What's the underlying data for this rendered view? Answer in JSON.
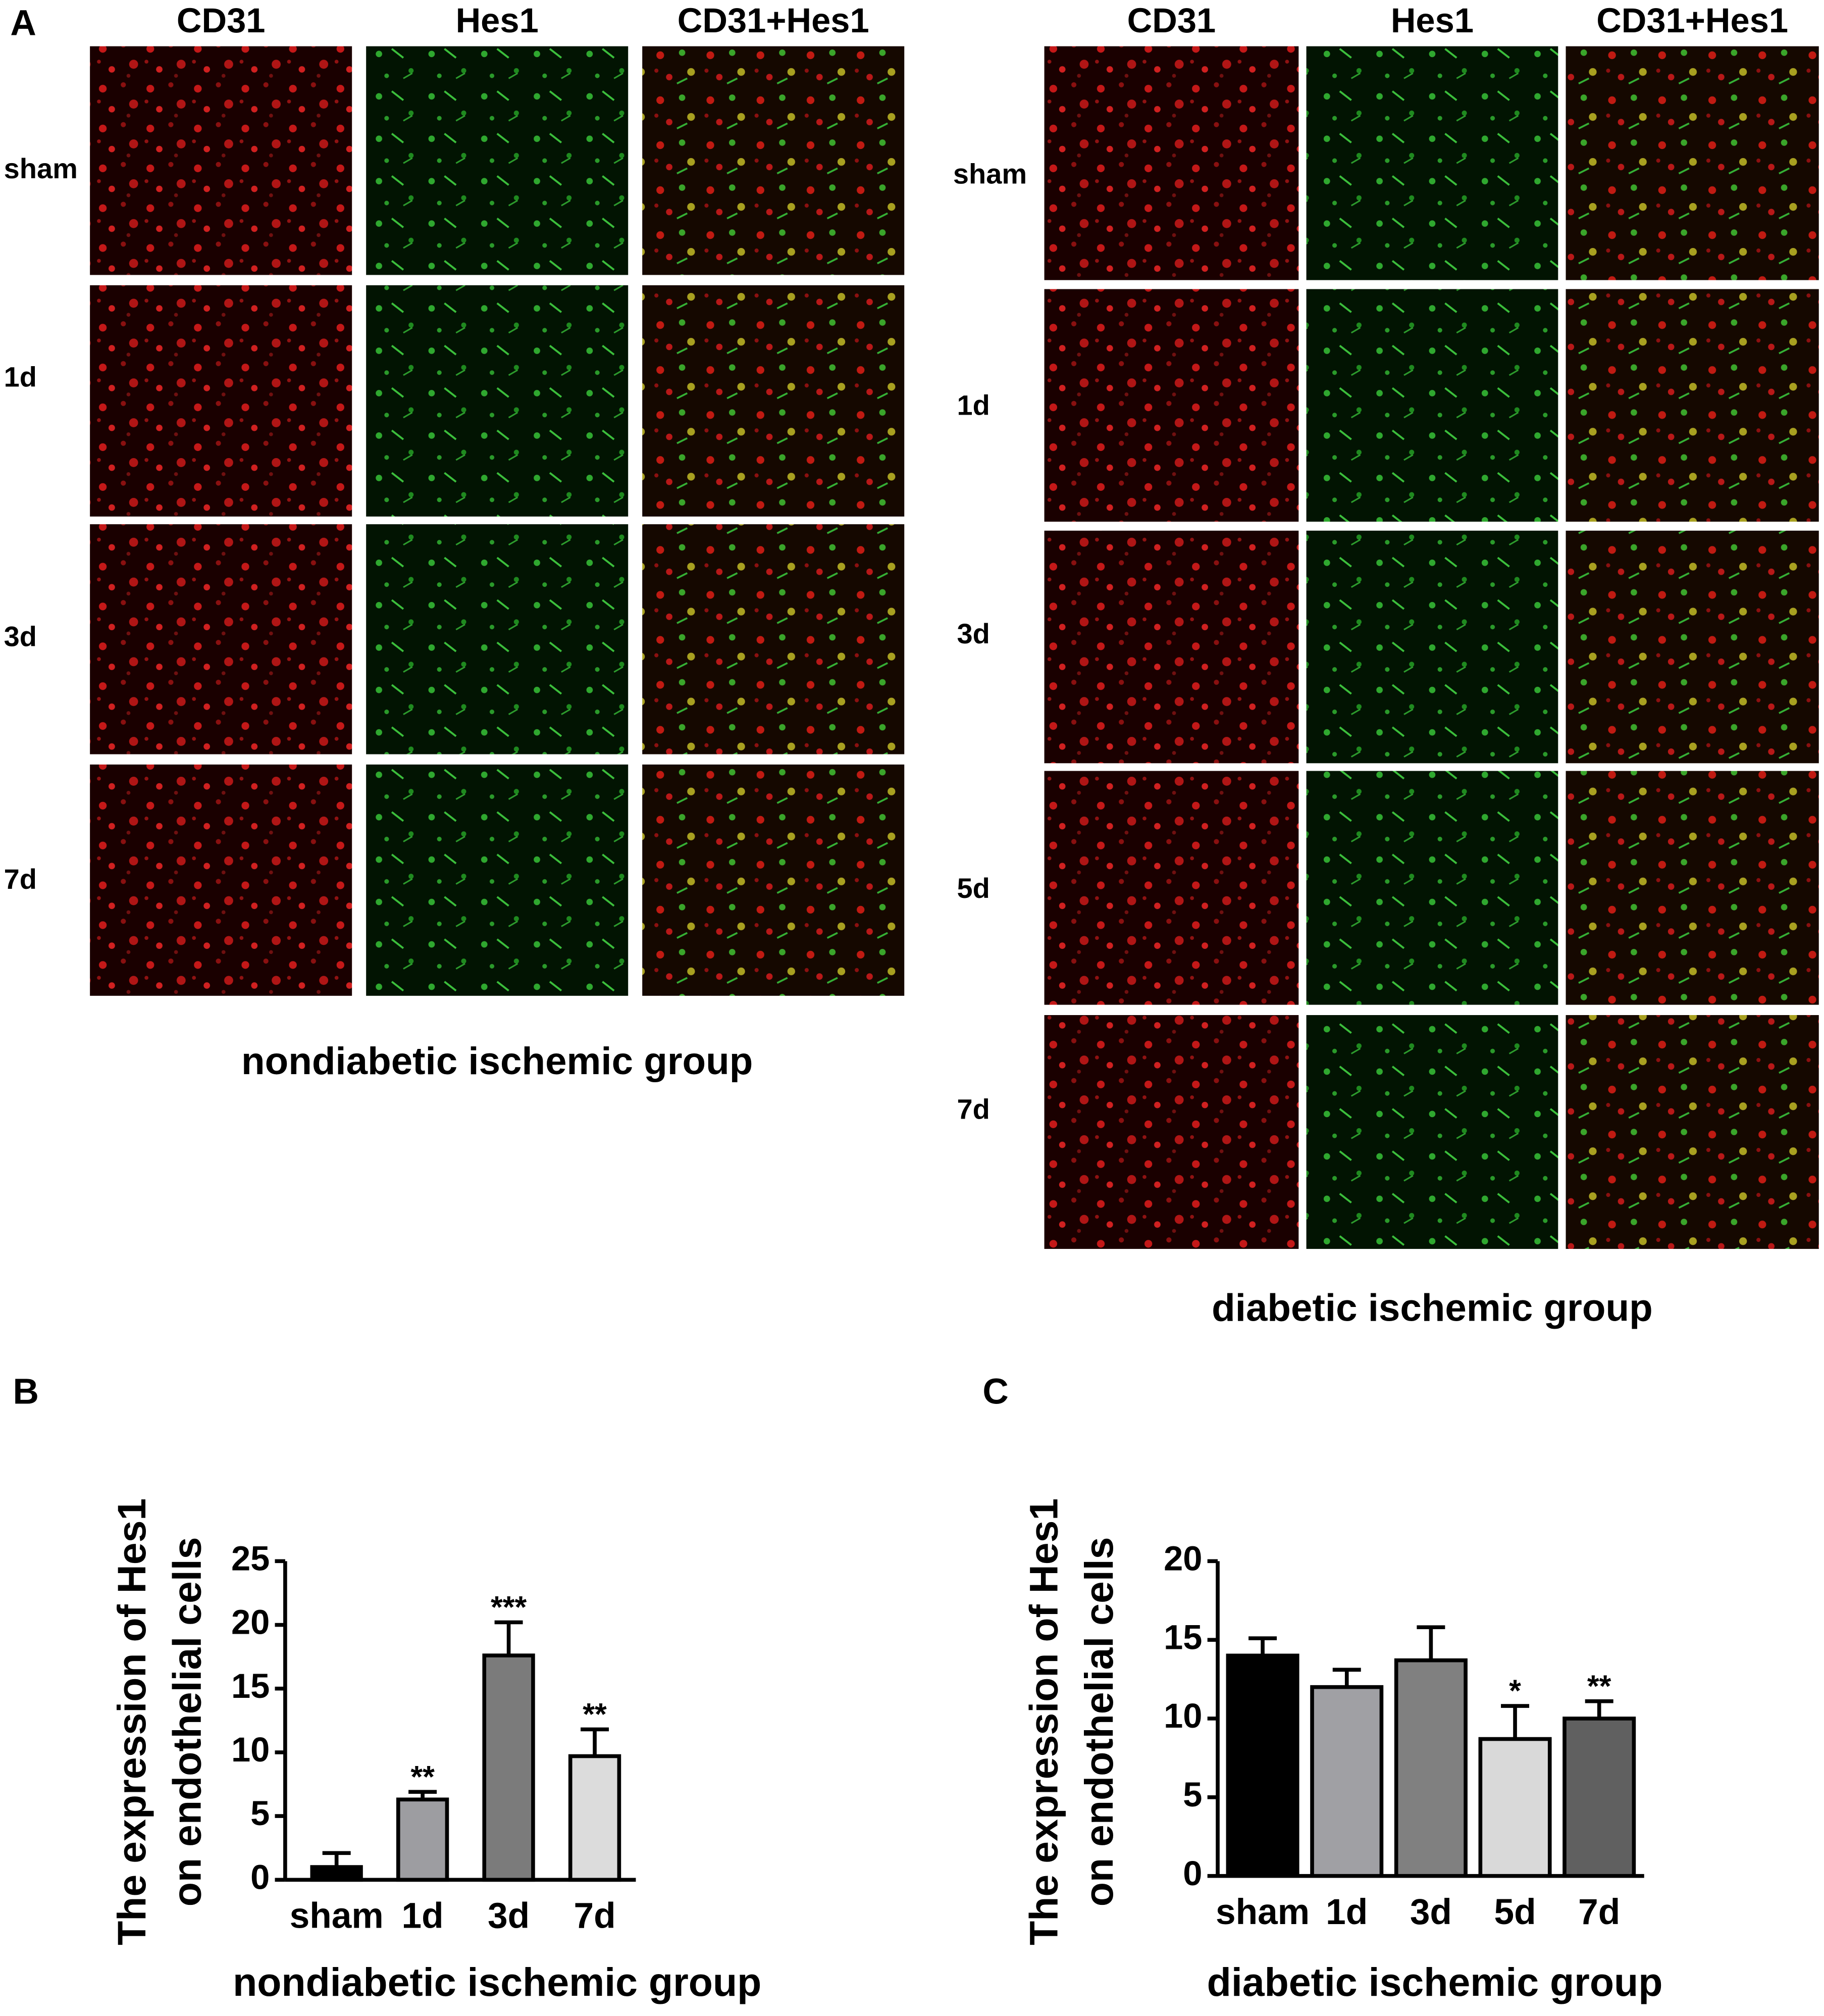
{
  "panel_a": {
    "label": "A",
    "groups": [
      {
        "columns": [
          "CD31",
          "Hes1",
          "CD31+Hes1"
        ],
        "rows": [
          "sham",
          "1d",
          "3d",
          "7d"
        ],
        "caption": "nondiabetic ischemic group"
      },
      {
        "columns": [
          "CD31",
          "Hes1",
          "CD31+Hes1"
        ],
        "rows": [
          "sham",
          "1d",
          "3d",
          "5d",
          "7d"
        ],
        "caption": "diabetic ischemic group"
      }
    ]
  },
  "chart_data": [
    {
      "type": "bar",
      "panel_label": "B",
      "y_label": [
        "The expression of Hes1",
        "on endothelial cells"
      ],
      "x_label": "nondiabetic ischemic group",
      "categories": [
        "sham",
        "1d",
        "3d",
        "7d"
      ],
      "values": [
        1,
        6.3,
        17.6,
        9.7
      ],
      "errors": [
        1.1,
        0.6,
        2.6,
        2.1
      ],
      "colors": [
        "#000000",
        "#9d9da1",
        "#7b7b7b",
        "#dcdcdc"
      ],
      "annotations": [
        null,
        "**",
        "***",
        "**"
      ],
      "ylim": [
        0,
        25
      ],
      "yticks": [
        0,
        5,
        10,
        15,
        20,
        25
      ]
    },
    {
      "type": "bar",
      "panel_label": "C",
      "y_label": [
        "The expression of Hes1",
        "on endothelial cells"
      ],
      "x_label": "diabetic ischemic group",
      "categories": [
        "sham",
        "1d",
        "3d",
        "5d",
        "7d"
      ],
      "values": [
        14,
        12,
        13.7,
        8.7,
        10
      ],
      "errors": [
        1.1,
        1.1,
        2.1,
        2.1,
        1.1
      ],
      "colors": [
        "#000000",
        "#a0a0a4",
        "#808080",
        "#d9d9d9",
        "#606060"
      ],
      "annotations": [
        null,
        null,
        null,
        "*",
        "**"
      ],
      "ylim": [
        0,
        20
      ],
      "yticks": [
        0,
        5,
        10,
        15,
        20
      ]
    }
  ]
}
